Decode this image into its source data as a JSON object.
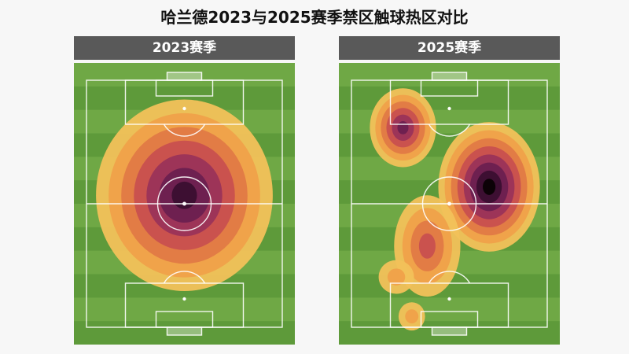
{
  "title": "哈兰德2023与2025赛季禁区触球热区对比",
  "colors": {
    "header_bg": "#595959",
    "grass_light": "#6fa845",
    "grass_dark": "#5e9a3a",
    "heat_ramp": [
      "#f2c15a",
      "#f0a14a",
      "#e07a45",
      "#c8504f",
      "#9a3358",
      "#6b2050",
      "#3a0f30",
      "#0a0205"
    ]
  },
  "chart_data": [
    {
      "type": "heatmap",
      "title": "2023赛季",
      "hotspots": [
        {
          "cx": 0.5,
          "cy": 0.47,
          "rx": 0.4,
          "ry": 0.34,
          "peak": 0.9
        }
      ]
    },
    {
      "type": "heatmap",
      "title": "2025赛季",
      "hotspots": [
        {
          "cx": 0.68,
          "cy": 0.44,
          "rx": 0.23,
          "ry": 0.23,
          "peak": 1.0
        },
        {
          "cx": 0.29,
          "cy": 0.23,
          "rx": 0.15,
          "ry": 0.14,
          "peak": 0.7
        },
        {
          "cx": 0.4,
          "cy": 0.65,
          "rx": 0.15,
          "ry": 0.18,
          "peak": 0.45
        },
        {
          "cx": 0.26,
          "cy": 0.76,
          "rx": 0.08,
          "ry": 0.06,
          "peak": 0.3
        },
        {
          "cx": 0.33,
          "cy": 0.9,
          "rx": 0.06,
          "ry": 0.05,
          "peak": 0.25
        }
      ]
    }
  ]
}
